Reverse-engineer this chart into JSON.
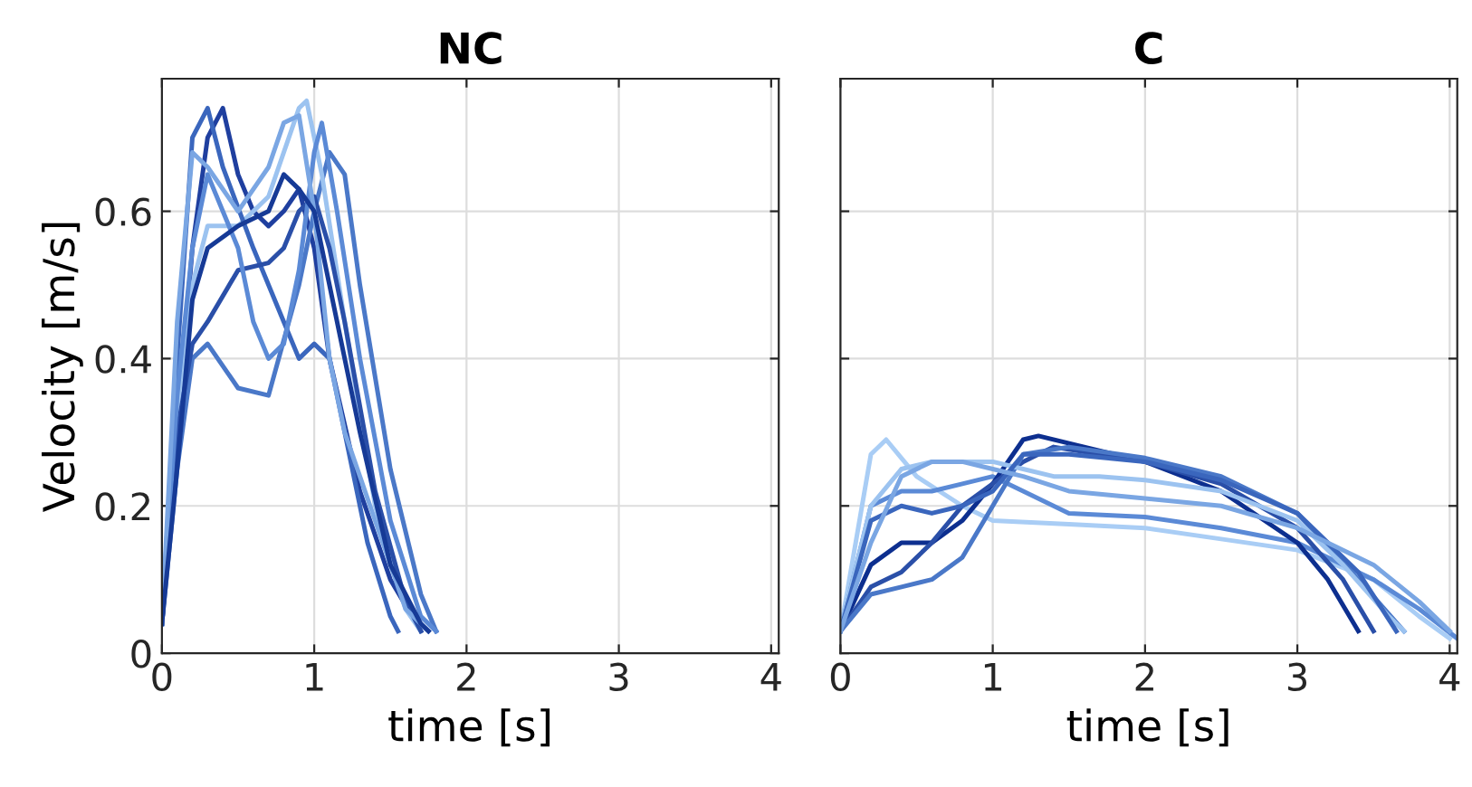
{
  "chart_data": [
    {
      "type": "line",
      "title": "NC",
      "xlabel": "time [s]",
      "ylabel": "Velocity [m/s]",
      "xlim": [
        0,
        4.05
      ],
      "xticks": [
        0,
        1,
        2,
        3,
        4
      ],
      "ylim": [
        0,
        0.78
      ],
      "yticks": [
        0,
        0.2,
        0.4,
        0.6
      ],
      "grid": true,
      "series": [
        {
          "color": "#1f3f9f",
          "x": [
            0,
            0.1,
            0.2,
            0.3,
            0.4,
            0.5,
            0.6,
            0.7,
            0.8,
            0.9,
            1.0,
            1.1,
            1.3,
            1.5,
            1.7
          ],
          "values": [
            0.04,
            0.3,
            0.55,
            0.7,
            0.74,
            0.65,
            0.6,
            0.58,
            0.6,
            0.63,
            0.55,
            0.4,
            0.22,
            0.1,
            0.03
          ]
        },
        {
          "color": "#4a78c8",
          "x": [
            0,
            0.1,
            0.2,
            0.3,
            0.5,
            0.7,
            0.9,
            1.0,
            1.1,
            1.2,
            1.3,
            1.5,
            1.7,
            1.8
          ],
          "values": [
            0.04,
            0.25,
            0.4,
            0.42,
            0.36,
            0.35,
            0.5,
            0.6,
            0.68,
            0.65,
            0.5,
            0.25,
            0.08,
            0.03
          ]
        },
        {
          "color": "#9cc3f0",
          "x": [
            0,
            0.1,
            0.2,
            0.3,
            0.5,
            0.7,
            0.9,
            0.95,
            1.05,
            1.2,
            1.4,
            1.6,
            1.7
          ],
          "values": [
            0.04,
            0.3,
            0.5,
            0.58,
            0.58,
            0.62,
            0.74,
            0.75,
            0.65,
            0.45,
            0.2,
            0.06,
            0.03
          ]
        },
        {
          "color": "#3a66bd",
          "x": [
            0,
            0.1,
            0.2,
            0.3,
            0.4,
            0.6,
            0.8,
            0.9,
            1.0,
            1.1,
            1.2,
            1.35,
            1.5,
            1.55
          ],
          "values": [
            0.04,
            0.4,
            0.7,
            0.74,
            0.66,
            0.55,
            0.45,
            0.4,
            0.42,
            0.4,
            0.3,
            0.15,
            0.05,
            0.03
          ]
        },
        {
          "color": "#2a4fa8",
          "x": [
            0,
            0.1,
            0.2,
            0.3,
            0.5,
            0.7,
            0.8,
            0.9,
            1.0,
            1.1,
            1.2,
            1.4,
            1.6,
            1.7
          ],
          "values": [
            0.04,
            0.3,
            0.42,
            0.45,
            0.52,
            0.53,
            0.55,
            0.6,
            0.62,
            0.55,
            0.45,
            0.22,
            0.07,
            0.03
          ]
        },
        {
          "color": "#5b8ad6",
          "x": [
            0,
            0.1,
            0.2,
            0.3,
            0.4,
            0.5,
            0.6,
            0.7,
            0.8,
            0.9,
            1.0,
            1.05,
            1.15,
            1.3,
            1.5,
            1.7,
            1.8
          ],
          "values": [
            0.04,
            0.35,
            0.55,
            0.65,
            0.6,
            0.55,
            0.45,
            0.4,
            0.42,
            0.52,
            0.68,
            0.72,
            0.6,
            0.4,
            0.18,
            0.05,
            0.03
          ]
        },
        {
          "color": "#7aa6e3",
          "x": [
            0,
            0.1,
            0.2,
            0.3,
            0.5,
            0.7,
            0.8,
            0.9,
            1.0,
            1.1,
            1.2,
            1.4,
            1.6,
            1.75
          ],
          "values": [
            0.04,
            0.45,
            0.68,
            0.66,
            0.6,
            0.66,
            0.72,
            0.73,
            0.6,
            0.4,
            0.3,
            0.18,
            0.06,
            0.03
          ]
        },
        {
          "color": "#163a96",
          "x": [
            0,
            0.1,
            0.2,
            0.3,
            0.5,
            0.7,
            0.8,
            0.9,
            1.0,
            1.1,
            1.3,
            1.5,
            1.7,
            1.75
          ],
          "values": [
            0.04,
            0.25,
            0.48,
            0.55,
            0.58,
            0.6,
            0.65,
            0.63,
            0.6,
            0.5,
            0.3,
            0.12,
            0.04,
            0.03
          ]
        }
      ]
    },
    {
      "type": "line",
      "title": "C",
      "xlabel": "time [s]",
      "xlim": [
        0,
        4.05
      ],
      "xticks": [
        0,
        1,
        2,
        3,
        4
      ],
      "ylim": [
        0,
        0.78
      ],
      "yticks": [
        0,
        0.2,
        0.4,
        0.6
      ],
      "grid": true,
      "tick_labels": "x",
      "series": [
        {
          "color": "#a9cdf5",
          "x": [
            0,
            0.1,
            0.2,
            0.3,
            0.5,
            0.8,
            1.0,
            1.5,
            2.0,
            2.5,
            3.0,
            3.5,
            3.8,
            4.0
          ],
          "values": [
            0.03,
            0.15,
            0.27,
            0.29,
            0.24,
            0.2,
            0.18,
            0.175,
            0.17,
            0.155,
            0.14,
            0.1,
            0.05,
            0.02
          ]
        },
        {
          "color": "#5b8ad6",
          "x": [
            0,
            0.2,
            0.4,
            0.6,
            0.8,
            1.0,
            1.2,
            1.5,
            2.0,
            2.5,
            3.0,
            3.5,
            3.8,
            4.05
          ],
          "values": [
            0.03,
            0.2,
            0.22,
            0.22,
            0.23,
            0.24,
            0.22,
            0.19,
            0.185,
            0.17,
            0.15,
            0.1,
            0.06,
            0.02
          ]
        },
        {
          "color": "#0d2f8f",
          "x": [
            0,
            0.2,
            0.4,
            0.6,
            0.8,
            1.0,
            1.2,
            1.3,
            1.6,
            2.0,
            2.5,
            3.0,
            3.2,
            3.4
          ],
          "values": [
            0.03,
            0.12,
            0.15,
            0.15,
            0.18,
            0.23,
            0.29,
            0.295,
            0.28,
            0.26,
            0.22,
            0.15,
            0.1,
            0.03
          ]
        },
        {
          "color": "#2a4fa8",
          "x": [
            0,
            0.2,
            0.4,
            0.6,
            0.8,
            1.0,
            1.2,
            1.4,
            2.0,
            2.5,
            3.0,
            3.3,
            3.5
          ],
          "values": [
            0.03,
            0.09,
            0.11,
            0.15,
            0.2,
            0.23,
            0.26,
            0.28,
            0.26,
            0.23,
            0.17,
            0.1,
            0.03
          ]
        },
        {
          "color": "#4a78c8",
          "x": [
            0,
            0.2,
            0.4,
            0.6,
            0.8,
            1.0,
            1.2,
            1.5,
            2.0,
            2.5,
            3.0,
            3.4,
            3.7
          ],
          "values": [
            0.03,
            0.08,
            0.09,
            0.1,
            0.13,
            0.2,
            0.27,
            0.28,
            0.265,
            0.24,
            0.19,
            0.1,
            0.03
          ]
        },
        {
          "color": "#9cc3f0",
          "x": [
            0,
            0.2,
            0.4,
            0.6,
            0.8,
            1.0,
            1.2,
            1.4,
            1.7,
            2.0,
            2.5,
            3.0,
            3.3,
            3.6,
            3.7
          ],
          "values": [
            0.03,
            0.2,
            0.25,
            0.26,
            0.26,
            0.26,
            0.25,
            0.24,
            0.24,
            0.235,
            0.22,
            0.18,
            0.12,
            0.05,
            0.03
          ]
        },
        {
          "color": "#3a66bd",
          "x": [
            0,
            0.2,
            0.4,
            0.6,
            0.8,
            1.0,
            1.2,
            1.5,
            2.0,
            2.5,
            3.0,
            3.4,
            3.65
          ],
          "values": [
            0.03,
            0.18,
            0.2,
            0.19,
            0.2,
            0.22,
            0.27,
            0.27,
            0.26,
            0.235,
            0.19,
            0.11,
            0.03
          ]
        },
        {
          "color": "#7aa6e3",
          "x": [
            0,
            0.2,
            0.4,
            0.6,
            0.8,
            1.0,
            1.2,
            1.5,
            2.0,
            2.5,
            3.0,
            3.5,
            3.8,
            4.0
          ],
          "values": [
            0.03,
            0.15,
            0.24,
            0.26,
            0.26,
            0.25,
            0.24,
            0.22,
            0.21,
            0.2,
            0.17,
            0.12,
            0.07,
            0.03
          ]
        }
      ]
    }
  ]
}
